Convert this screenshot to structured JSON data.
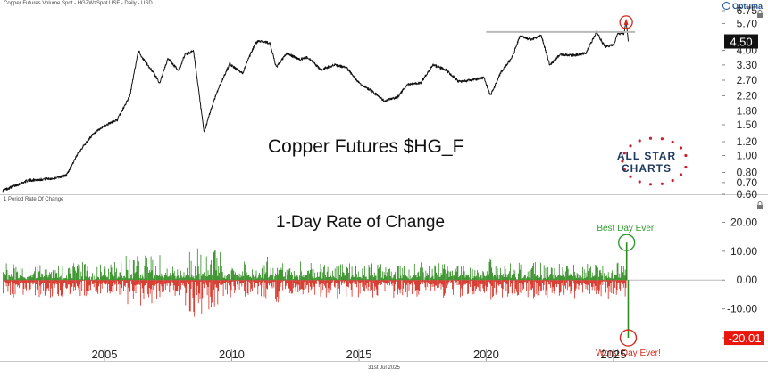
{
  "header": {
    "upper_caption": "Copper Futures Volume Spot - HGZWzSpot.USF - Daily - USD",
    "lower_caption": "1 Period Rate Of Change",
    "brand": "Optuma",
    "date_stamp": "31st Jul 2025"
  },
  "colors": {
    "price_line": "#111111",
    "gain": "#2e8b1f",
    "loss": "#d42a1e",
    "circle_green": "#2e9e2e",
    "circle_red": "#d42a1e",
    "resistance_line": "#b8b8b8",
    "logo_red": "#c8202f",
    "logo_navy": "#1f3a60"
  },
  "logo": {
    "line1": "ALL STAR",
    "line2": "CHARTS"
  },
  "chart_data": [
    {
      "type": "line",
      "title": "Copper Futures $HG_F",
      "y_scale": "log",
      "ylim": [
        0.6,
        6.75
      ],
      "y_ticks": [
        "0.60",
        "0.70",
        "0.80",
        "1.00",
        "1.20",
        "1.50",
        "1.80",
        "2.20",
        "2.70",
        "3.30",
        "4.00",
        "5.70",
        "6.75"
      ],
      "last_value_label": "4.50",
      "resistance_level": 5.1,
      "x": [
        "2001-01",
        "2002-01",
        "2003-01",
        "2003-07",
        "2004-01",
        "2004-07",
        "2005-01",
        "2005-07",
        "2006-01",
        "2006-05",
        "2006-07",
        "2006-12",
        "2007-03",
        "2007-07",
        "2007-12",
        "2008-03",
        "2008-07",
        "2008-12",
        "2009-03",
        "2009-06",
        "2009-12",
        "2010-06",
        "2010-12",
        "2011-02",
        "2011-07",
        "2011-10",
        "2012-03",
        "2012-09",
        "2013-01",
        "2013-07",
        "2014-01",
        "2014-07",
        "2015-01",
        "2015-07",
        "2016-01",
        "2016-07",
        "2016-12",
        "2017-06",
        "2017-12",
        "2018-06",
        "2018-12",
        "2019-06",
        "2019-12",
        "2020-03",
        "2020-08",
        "2021-01",
        "2021-05",
        "2021-10",
        "2022-03",
        "2022-07",
        "2022-12",
        "2023-06",
        "2023-12",
        "2024-05",
        "2024-09",
        "2025-01",
        "2025-03",
        "2025-06",
        "2025-07",
        "2025-07-31"
      ],
      "y": [
        0.63,
        0.72,
        0.74,
        0.77,
        1.05,
        1.3,
        1.48,
        1.6,
        2.2,
        4.0,
        3.6,
        3.0,
        2.6,
        3.6,
        3.05,
        3.8,
        3.95,
        1.35,
        1.8,
        2.3,
        3.35,
        2.95,
        4.35,
        4.55,
        4.4,
        3.2,
        3.85,
        3.55,
        3.65,
        3.1,
        3.3,
        3.2,
        2.6,
        2.35,
        2.05,
        2.15,
        2.55,
        2.6,
        3.3,
        3.1,
        2.65,
        2.7,
        2.8,
        2.2,
        3.0,
        3.6,
        4.85,
        4.6,
        4.85,
        3.3,
        3.8,
        3.75,
        3.85,
        5.1,
        4.2,
        4.3,
        4.95,
        5.0,
        5.8,
        4.5
      ]
    },
    {
      "type": "bar",
      "title": "1-Day Rate of Change",
      "ylim": [
        -20,
        20
      ],
      "y_ticks": [
        "20.00",
        "10.00",
        "0.00",
        "-10.00",
        "-20.00"
      ],
      "last_value_label": "-20.01",
      "best_day": {
        "label": "Best Day Ever!",
        "date": "2025-07-08",
        "value": 13
      },
      "worst_day": {
        "label": "Worst Day Ever!",
        "date": "2025-07-31",
        "value": -20.01
      }
    }
  ],
  "x_axis": {
    "ticks": [
      "2005",
      "2010",
      "2015",
      "2020",
      "2025"
    ],
    "tick_years": [
      2005,
      2010,
      2015,
      2020,
      2025
    ]
  }
}
